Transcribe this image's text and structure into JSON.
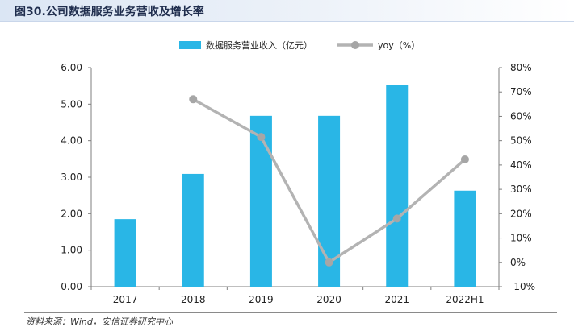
{
  "figure": {
    "title": "图30.公司数据服务业务营收及增长率",
    "source": "资料来源：Wind，安信证券研究中心"
  },
  "colors": {
    "bar": "#29b6e6",
    "line": "#b3b3b3",
    "marker": "#a6a6a6",
    "axis": "#7f7f7f",
    "text": "#222222"
  },
  "chart_data": {
    "type": "bar",
    "title": "",
    "categories": [
      "2017",
      "2018",
      "2019",
      "2020",
      "2021",
      "2022H1"
    ],
    "series": [
      {
        "name": "数据服务营业收入（亿元）",
        "type": "bar",
        "axis": "left",
        "values": [
          1.85,
          3.09,
          4.68,
          4.68,
          5.52,
          2.63
        ]
      },
      {
        "name": "yoy（%）",
        "type": "line",
        "axis": "right",
        "values": [
          null,
          67,
          51.5,
          0,
          18,
          42.3
        ]
      }
    ],
    "y_left": {
      "min": 0,
      "max": 6,
      "ticks": [
        0,
        1,
        2,
        3,
        4,
        5,
        6
      ],
      "tick_labels": [
        "0.00",
        "1.00",
        "2.00",
        "3.00",
        "4.00",
        "5.00",
        "6.00"
      ]
    },
    "y_right": {
      "min": -10,
      "max": 80,
      "ticks": [
        -10,
        0,
        10,
        20,
        30,
        40,
        50,
        60,
        70,
        80
      ],
      "tick_labels": [
        "-10%",
        "0%",
        "10%",
        "20%",
        "30%",
        "40%",
        "50%",
        "60%",
        "70%",
        "80%"
      ]
    },
    "legend_position": "top-center",
    "grid": false
  }
}
